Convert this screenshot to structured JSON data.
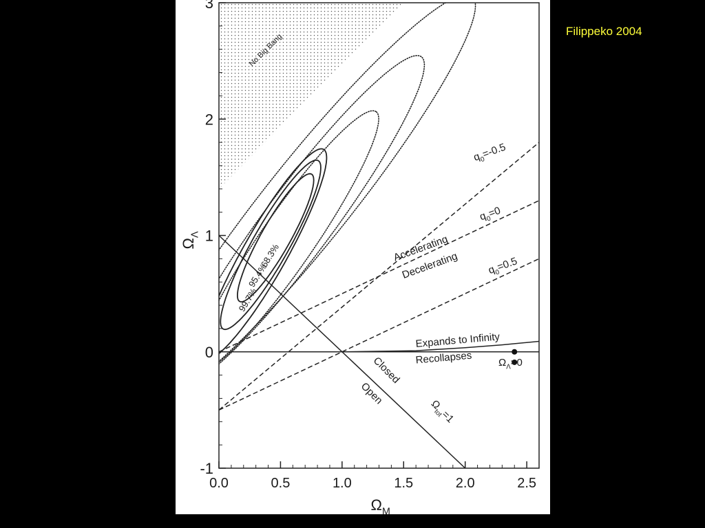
{
  "credit": "Filippeko 2004",
  "chart_data": {
    "type": "line",
    "xlim": [
      0,
      2.6
    ],
    "ylim": [
      -1,
      3
    ],
    "xlabel": "Ω",
    "xlabel_sub": "M",
    "ylabel": "Ω",
    "ylabel_sub": "Λ",
    "xticks": [
      {
        "v": 0,
        "label": "0.0"
      },
      {
        "v": 0.5,
        "label": "0.5"
      },
      {
        "v": 1.0,
        "label": "1.0"
      },
      {
        "v": 1.5,
        "label": "1.5"
      },
      {
        "v": 2.0,
        "label": "2.0"
      },
      {
        "v": 2.5,
        "label": "2.5"
      }
    ],
    "yticks": [
      {
        "v": -1,
        "label": "-1"
      },
      {
        "v": 0,
        "label": "0"
      },
      {
        "v": 1,
        "label": "1"
      },
      {
        "v": 2,
        "label": "2"
      },
      {
        "v": 3,
        "label": "3"
      }
    ],
    "region_label": "No Big Bang",
    "lines": [
      {
        "id": "flat",
        "style": "solid",
        "points": [
          [
            0.0,
            1.0
          ],
          [
            2.0,
            -1.0
          ]
        ],
        "label": "Ω",
        "label_sub": "tot",
        "label_tail": "=1"
      },
      {
        "id": "lambda-zero",
        "style": "solid",
        "points": [
          [
            0.0,
            0.0
          ],
          [
            2.6,
            0.0
          ]
        ]
      },
      {
        "id": "expansion-boundary",
        "style": "solid",
        "points": [
          [
            1.0,
            0.0
          ],
          [
            1.6,
            0.01
          ],
          [
            2.0,
            0.035
          ],
          [
            2.3,
            0.06
          ],
          [
            2.6,
            0.09
          ]
        ]
      },
      {
        "id": "q0-minus",
        "style": "dashed",
        "points": [
          [
            0.0,
            -0.5
          ],
          [
            2.6,
            1.8
          ]
        ],
        "label": "q",
        "label_sub": "0",
        "label_tail": "=-0.5"
      },
      {
        "id": "q0-zero",
        "style": "dashed",
        "points": [
          [
            0.0,
            0.0
          ],
          [
            2.6,
            1.3
          ]
        ],
        "label": "q",
        "label_sub": "0",
        "label_tail": "=0"
      },
      {
        "id": "q0-plus",
        "style": "dashed",
        "points": [
          [
            0.0,
            -0.5
          ],
          [
            2.6,
            0.8
          ]
        ],
        "label": "q",
        "label_sub": "0",
        "label_tail": "=0.5"
      }
    ],
    "region_labels": {
      "accelerating": "Accelerating",
      "decelerating": "Decelerating",
      "expands": "Expands to Infinity",
      "recollapses": "Recollapses",
      "closed": "Closed",
      "open": "Open"
    },
    "markers": {
      "label": "Ω",
      "label_sub": "Λ",
      "label_tail": "=0",
      "points": [
        [
          2.4,
          0.0
        ],
        [
          2.4,
          -0.09
        ]
      ]
    },
    "contours": [
      {
        "id": "solid-68",
        "style": "solid",
        "center": [
          0.46,
          0.98
        ],
        "semi_major": 0.62,
        "semi_minor": 0.12,
        "angle_deg": 62,
        "label": "68.3%"
      },
      {
        "id": "solid-95",
        "style": "solid",
        "center": [
          0.42,
          0.92
        ],
        "semi_major": 0.82,
        "semi_minor": 0.15,
        "angle_deg": 62,
        "label": "95.4%"
      },
      {
        "id": "solid-99",
        "style": "solid",
        "center": [
          0.37,
          0.84
        ],
        "semi_major": 1.02,
        "semi_minor": 0.18,
        "angle_deg": 62,
        "label": "99.7%"
      },
      {
        "id": "dotted-1",
        "style": "dotted",
        "center": [
          0.55,
          0.95
        ],
        "semi_major": 1.33,
        "semi_minor": 0.22,
        "angle_deg": 57
      },
      {
        "id": "dotted-2",
        "style": "dotted",
        "center": [
          0.65,
          1.12
        ],
        "semi_major": 1.73,
        "semi_minor": 0.28,
        "angle_deg": 55
      },
      {
        "id": "dotted-3",
        "style": "dotted",
        "center": [
          0.73,
          1.3
        ],
        "semi_major": 2.2,
        "semi_minor": 0.35,
        "angle_deg": 53
      }
    ]
  }
}
